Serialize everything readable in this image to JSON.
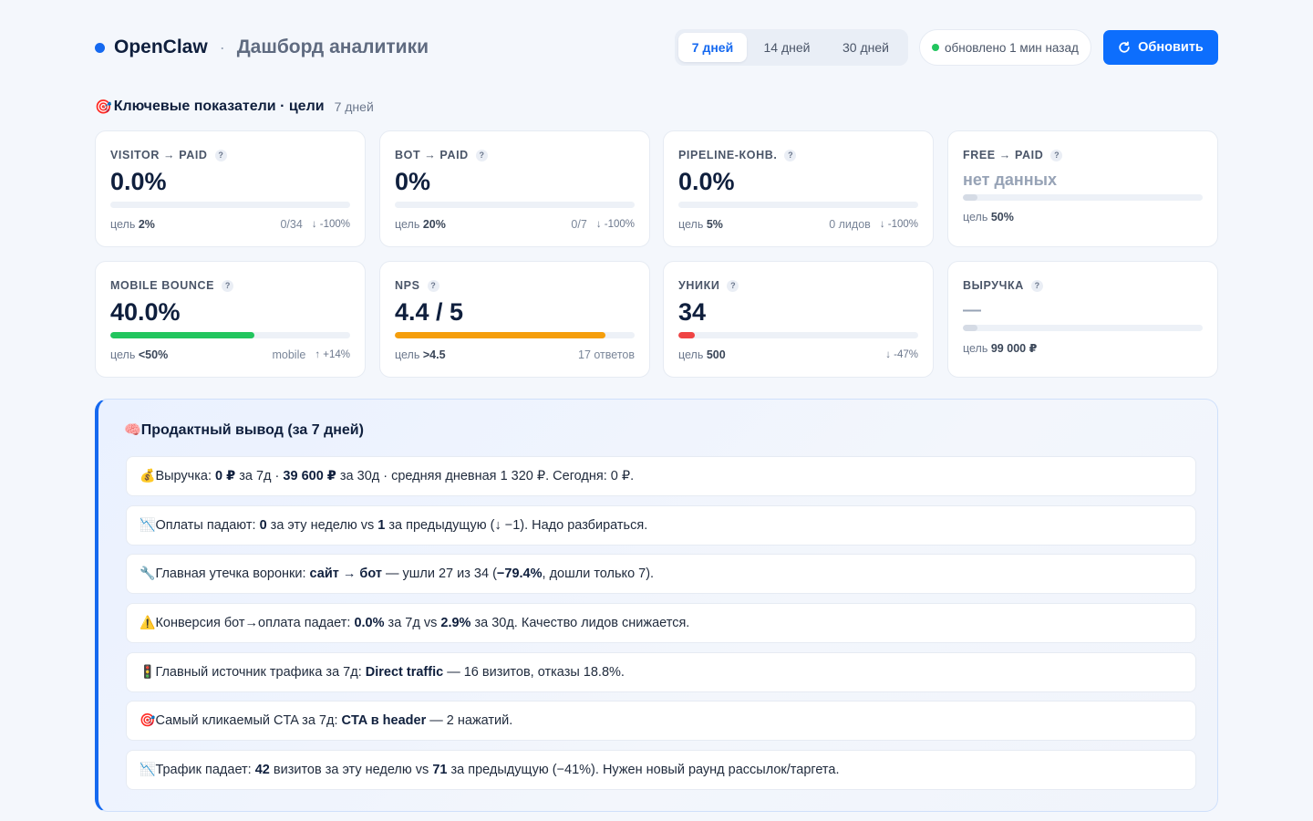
{
  "header": {
    "brand": "OpenClaw",
    "separator": "·",
    "subtitle": "Дашборд аналитики",
    "tabs": [
      {
        "label": "7 дней",
        "active": true
      },
      {
        "label": "14 дней",
        "active": false
      },
      {
        "label": "30 дней",
        "active": false
      }
    ],
    "status": "обновлено 1 мин назад",
    "refresh_label": "Обновить"
  },
  "section": {
    "icon": "target-icon",
    "title": "Ключевые показатели · цели",
    "period": "7 дней"
  },
  "kpis": [
    {
      "label": "VISITOR → PAID",
      "value": "0.0%",
      "progress": 0,
      "goal_prefix": "цель",
      "goal": "2%",
      "meta": "0/34",
      "delta": "↓ -100%"
    },
    {
      "label": "BOT → PAID",
      "value": "0%",
      "progress": 0,
      "goal_prefix": "цель",
      "goal": "20%",
      "meta": "0/7",
      "delta": "↓ -100%"
    },
    {
      "label": "PIPELINE-КОНВ.",
      "value": "0.0%",
      "progress": 0,
      "goal_prefix": "цель",
      "goal": "5%",
      "meta": "0 лидов",
      "delta": "↓ -100%"
    },
    {
      "label": "FREE → PAID",
      "value": "нет данных",
      "progress": 0,
      "goal_prefix": "цель",
      "goal": "50%",
      "meta": "",
      "delta": ""
    },
    {
      "label": "MOBILE BOUNCE",
      "value": "40.0%",
      "progress": 0.6,
      "bar_color": "#22c55e",
      "goal_prefix": "цель",
      "goal": "<50%",
      "meta": "mobile",
      "delta": "↑ +14%"
    },
    {
      "label": "NPS",
      "value": "4.4 / 5",
      "progress": 0.88,
      "bar_color": "#f59e0b",
      "goal_prefix": "цель",
      "goal": ">4.5",
      "meta": "17 ответов",
      "delta": ""
    },
    {
      "label": "УНИКИ",
      "value": "34",
      "progress": 0.068,
      "bar_color": "#ef4444",
      "goal_prefix": "цель",
      "goal": "500",
      "meta": "",
      "delta": "↓ -47%"
    },
    {
      "label": "ВЫРУЧКА",
      "value": "—",
      "progress": 0,
      "goal_prefix": "цель",
      "goal": "99 000 ₽",
      "meta": "",
      "delta": ""
    }
  ],
  "insights": {
    "icon": "brain-icon",
    "title": "Продактный вывод (за 7 дней)",
    "rows": [
      {
        "icon": "money-bag-icon",
        "parts": [
          [
            "Выручка: ",
            false
          ],
          [
            "0 ₽",
            true
          ],
          [
            " за 7д · ",
            false
          ],
          [
            "39 600 ₽",
            true
          ],
          [
            " за 30д · средняя дневная 1 320 ₽. Сегодня: 0 ₽.",
            false
          ]
        ]
      },
      {
        "icon": "chart-down-icon",
        "parts": [
          [
            "Оплаты падают: ",
            false
          ],
          [
            "0",
            true
          ],
          [
            " за эту неделю vs ",
            false
          ],
          [
            "1",
            true
          ],
          [
            " за предыдущую (↓ −1). Надо разбираться.",
            false
          ]
        ]
      },
      {
        "icon": "wrench-icon",
        "parts": [
          [
            "Главная утечка воронки: ",
            false
          ],
          [
            "сайт → бот",
            true
          ],
          [
            " — ушли 27 из 34 (",
            false
          ],
          [
            "−79.4%",
            true
          ],
          [
            ", дошли только 7).",
            false
          ]
        ]
      },
      {
        "icon": "warning-icon",
        "parts": [
          [
            "Конверсия бот→оплата падает: ",
            false
          ],
          [
            "0.0%",
            true
          ],
          [
            " за 7д vs ",
            false
          ],
          [
            "2.9%",
            true
          ],
          [
            " за 30д. Качество лидов снижается.",
            false
          ]
        ]
      },
      {
        "icon": "traffic-light-icon",
        "parts": [
          [
            "Главный источник трафика за 7д: ",
            false
          ],
          [
            "Direct traffic",
            true
          ],
          [
            " — 16 визитов, отказы 18.8%.",
            false
          ]
        ]
      },
      {
        "icon": "target-icon",
        "parts": [
          [
            "Самый кликаемый CTA за 7д: ",
            false
          ],
          [
            "CTA в header",
            true
          ],
          [
            " — 2 нажатий.",
            false
          ]
        ]
      },
      {
        "icon": "chart-down-icon",
        "parts": [
          [
            "Трафик падает: ",
            false
          ],
          [
            "42",
            true
          ],
          [
            " визитов за эту неделю vs ",
            false
          ],
          [
            "71",
            true
          ],
          [
            " за предыдущую (−41%). Нужен новый раунд рассылок/таргета.",
            false
          ]
        ]
      }
    ]
  },
  "colors": {
    "accent": "#1569f0",
    "button": "#0d6efd",
    "success": "#22c55e",
    "warning": "#f59e0b",
    "danger": "#ef4444"
  }
}
